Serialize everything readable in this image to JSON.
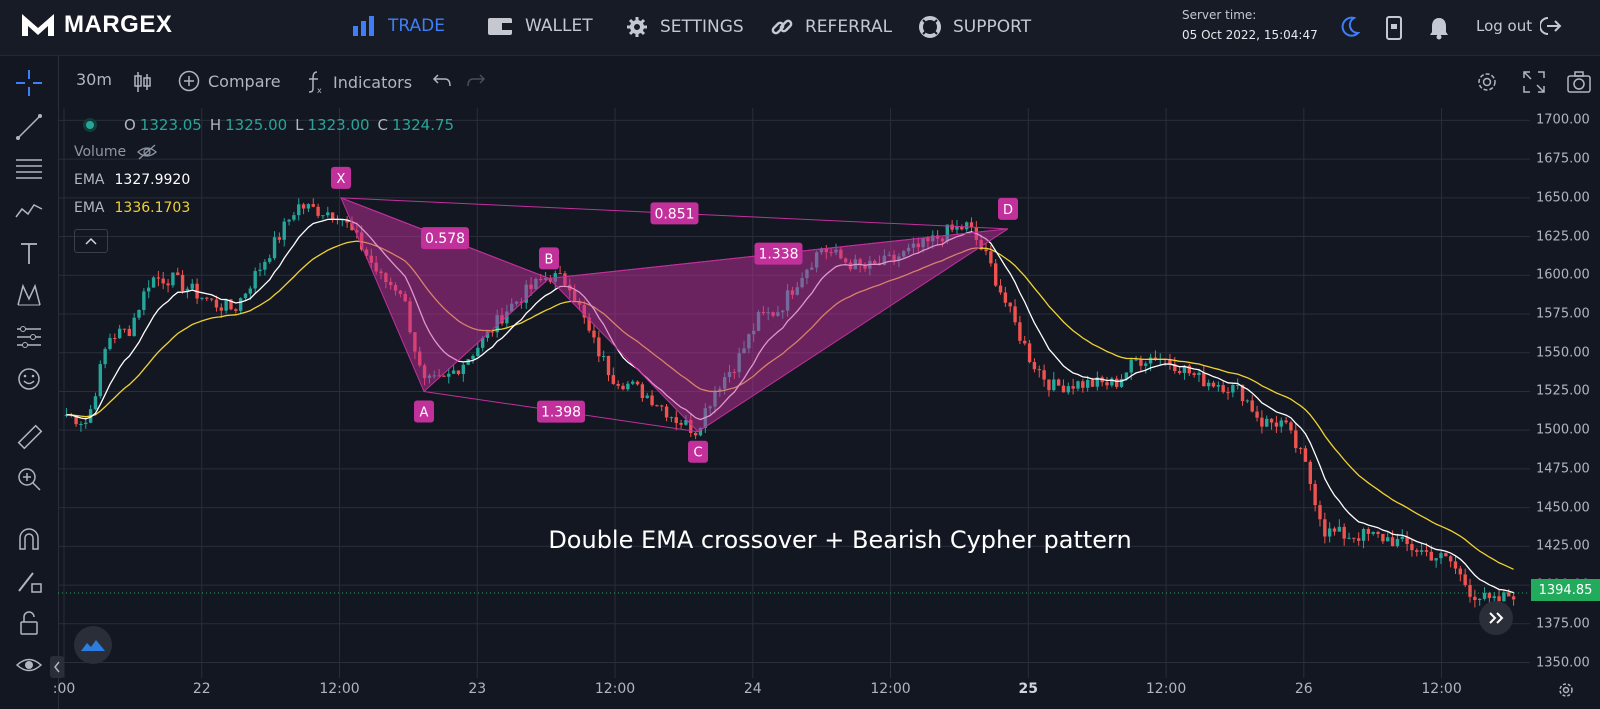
{
  "brand": "MARGEX",
  "nav": [
    {
      "label": "TRADE",
      "icon": "bar-chart-icon"
    },
    {
      "label": "WALLET",
      "icon": "wallet-icon"
    },
    {
      "label": "SETTINGS",
      "icon": "gear-icon"
    },
    {
      "label": "REFERRAL",
      "icon": "link-icon"
    },
    {
      "label": "SUPPORT",
      "icon": "lifebuoy-icon"
    }
  ],
  "server": {
    "label": "Server time:",
    "time": "05 Oct 2022, 15:04:47"
  },
  "logout": "Log out",
  "toolbar": {
    "interval": "30m",
    "compare": "Compare",
    "indicators": "Indicators"
  },
  "legend": {
    "o_label": "O",
    "o": "1323.05",
    "h_label": "H",
    "h": "1325.00",
    "l_label": "L",
    "l": "1323.00",
    "c_label": "C",
    "c": "1324.75",
    "volume": "Volume",
    "ema1_label": "EMA",
    "ema1": "1327.9920",
    "ema2_label": "EMA",
    "ema2": "1336.1703"
  },
  "colors": {
    "up": "#26a69a",
    "down": "#ef5350",
    "ema_fast": "#ffffff",
    "ema_slow": "#f0d232",
    "pattern": "#c2309c",
    "price_tag": "#22ab5c",
    "accent": "#3f7ef7"
  },
  "last_price": "1394.85",
  "caption": "Double EMA crossover + Bearish Cypher pattern",
  "chart_data": {
    "type": "candlestick",
    "y_ticks": [
      "1700.00",
      "1675.00",
      "1650.00",
      "1625.00",
      "1600.00",
      "1575.00",
      "1550.00",
      "1525.00",
      "1500.00",
      "1475.00",
      "1450.00",
      "1425.00",
      "1400.00",
      "1375.00",
      "1350.00"
    ],
    "ylim": [
      1340,
      1708
    ],
    "x_ticks": [
      ":00",
      "22",
      "12:00",
      "23",
      "12:00",
      "24",
      "12:00",
      "25",
      "12:00",
      "26",
      "12:00"
    ],
    "close_path": [
      1510,
      1505,
      1560,
      1565,
      1598,
      1598,
      1590,
      1582,
      1578,
      1600,
      1622,
      1645,
      1642,
      1640,
      1620,
      1598,
      1590,
      1530,
      1532,
      1545,
      1560,
      1578,
      1590,
      1600,
      1595,
      1560,
      1535,
      1528,
      1520,
      1508,
      1500,
      1528,
      1545,
      1572,
      1578,
      1600,
      1618,
      1610,
      1604,
      1608,
      1614,
      1620,
      1628,
      1632,
      1608,
      1575,
      1545,
      1528,
      1530,
      1530,
      1530,
      1545,
      1548,
      1542,
      1533,
      1530,
      1525,
      1505,
      1505,
      1480,
      1435,
      1432,
      1432,
      1430,
      1425,
      1420,
      1415,
      1395,
      1388,
      1394.85
    ],
    "pattern": {
      "points": [
        {
          "label": "X",
          "value": 1650
        },
        {
          "label": "A",
          "value": 1525
        },
        {
          "label": "B",
          "value": 1598
        },
        {
          "label": "C",
          "value": 1499
        },
        {
          "label": "D",
          "value": 1630
        }
      ],
      "ratios": [
        "0.578",
        "1.338",
        "1.398",
        "0.851"
      ]
    }
  }
}
